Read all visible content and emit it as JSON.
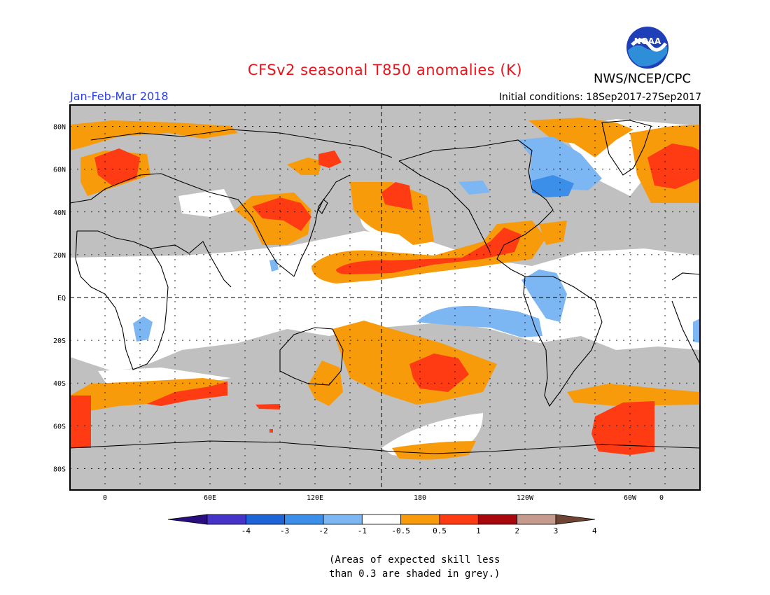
{
  "title": "CFSv2 seasonal T850 anomalies (K)",
  "agency": "NWS/NCEP/CPC",
  "logo_text": "NOAA",
  "season": "Jan-Feb-Mar 2018",
  "initial_conditions": "Initial conditions: 18Sep2017-27Sep2017",
  "lat_labels": [
    "80N",
    "60N",
    "40N",
    "20N",
    "EQ",
    "20S",
    "40S",
    "60S",
    "80S"
  ],
  "lon_labels": [
    "0",
    "60E",
    "120E",
    "180",
    "120W",
    "60W",
    "0"
  ],
  "colorbar": {
    "ticks": [
      "-4",
      "-3",
      "-2",
      "-1",
      "-0.5",
      "0.5",
      "1",
      "2",
      "3",
      "4"
    ],
    "colors": [
      "#2a0d7e",
      "#4634c8",
      "#1f64d6",
      "#3b8fe8",
      "#7cb6f3",
      "#ffffff",
      "#f79b0a",
      "#ff3b14",
      "#a8080d",
      "#c69a8c",
      "#6f4433"
    ]
  },
  "note_line1": "(Areas of expected skill less",
  "note_line2": "than 0.3 are shaded in grey.)",
  "palette": {
    "grey": "#c0c0c0",
    "orange": "#f79b0a",
    "red": "#ff3b14",
    "lightblue": "#7cb6f3",
    "blue": "#3b8fe8"
  }
}
